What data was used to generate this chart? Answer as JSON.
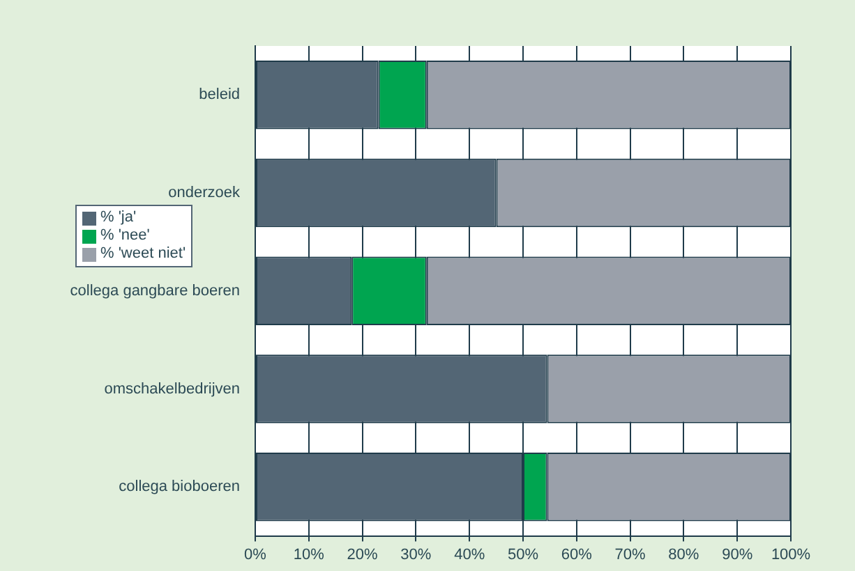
{
  "chart_data": {
    "type": "bar",
    "orientation": "horizontal",
    "stacked": true,
    "categories": [
      "beleid",
      "onderzoek",
      "collega gangbare boeren",
      "omschakelbedrijven",
      "collega bioboeren"
    ],
    "series": [
      {
        "name": "% 'ja'",
        "color": "#536675",
        "values": [
          23,
          45,
          18,
          54.5,
          50
        ]
      },
      {
        "name": "% 'nee'",
        "color": "#00a550",
        "values": [
          9,
          0,
          14,
          0,
          4.5
        ]
      },
      {
        "name": "% 'weet niet'",
        "color": "#9aa0aa",
        "values": [
          68,
          55,
          68,
          45.5,
          45.5
        ]
      }
    ],
    "xlim": [
      0,
      100
    ],
    "xticks": [
      {
        "value": 0,
        "label": "0%"
      },
      {
        "value": 10,
        "label": "10%"
      },
      {
        "value": 20,
        "label": "20%"
      },
      {
        "value": 30,
        "label": "30%"
      },
      {
        "value": 40,
        "label": "40%"
      },
      {
        "value": 50,
        "label": "50%"
      },
      {
        "value": 60,
        "label": "60%"
      },
      {
        "value": 70,
        "label": "70%"
      },
      {
        "value": 80,
        "label": "80%"
      },
      {
        "value": 90,
        "label": "90%"
      },
      {
        "value": 100,
        "label": "100%"
      }
    ],
    "grid": "x",
    "legend": "left"
  }
}
